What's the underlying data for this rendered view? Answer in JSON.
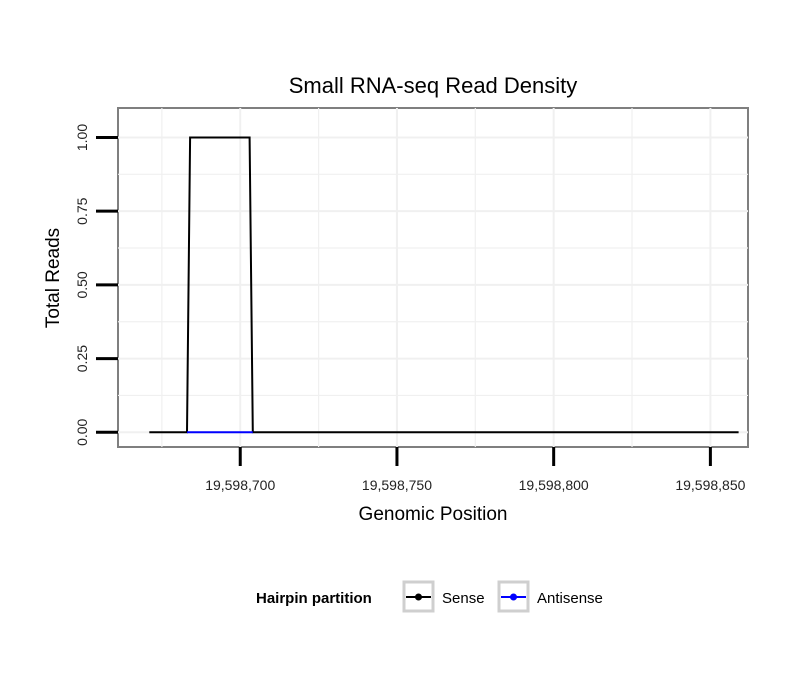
{
  "chart_data": {
    "type": "line",
    "title": "Small RNA-seq Read Density",
    "xlabel": "Genomic Position",
    "ylabel": "Total Reads",
    "xlim": [
      19598661,
      19598862
    ],
    "ylim": [
      -0.05,
      1.1
    ],
    "x_ticks": [
      19598700,
      19598750,
      19598800,
      19598850
    ],
    "x_tick_labels": [
      "19,598,700",
      "19,598,750",
      "19,598,800",
      "19,598,850"
    ],
    "y_ticks": [
      0,
      0.25,
      0.5,
      0.75,
      1.0
    ],
    "y_tick_labels": [
      "0.00",
      "0.25",
      "0.50",
      "0.75",
      "1.00"
    ],
    "grid": true,
    "series": [
      {
        "name": "Sense",
        "color": "#000000",
        "x": [
          19598671,
          19598683,
          19598684,
          19598703,
          19598704,
          19598859
        ],
        "y": [
          0,
          0,
          1,
          1,
          0,
          0
        ]
      },
      {
        "name": "Antisense",
        "color": "#0000ff",
        "x": [
          19598683,
          19598704
        ],
        "y": [
          0,
          0
        ]
      }
    ],
    "legend": {
      "title": "Hairpin partition",
      "position": "bottom",
      "entries": [
        "Sense",
        "Antisense"
      ]
    }
  }
}
